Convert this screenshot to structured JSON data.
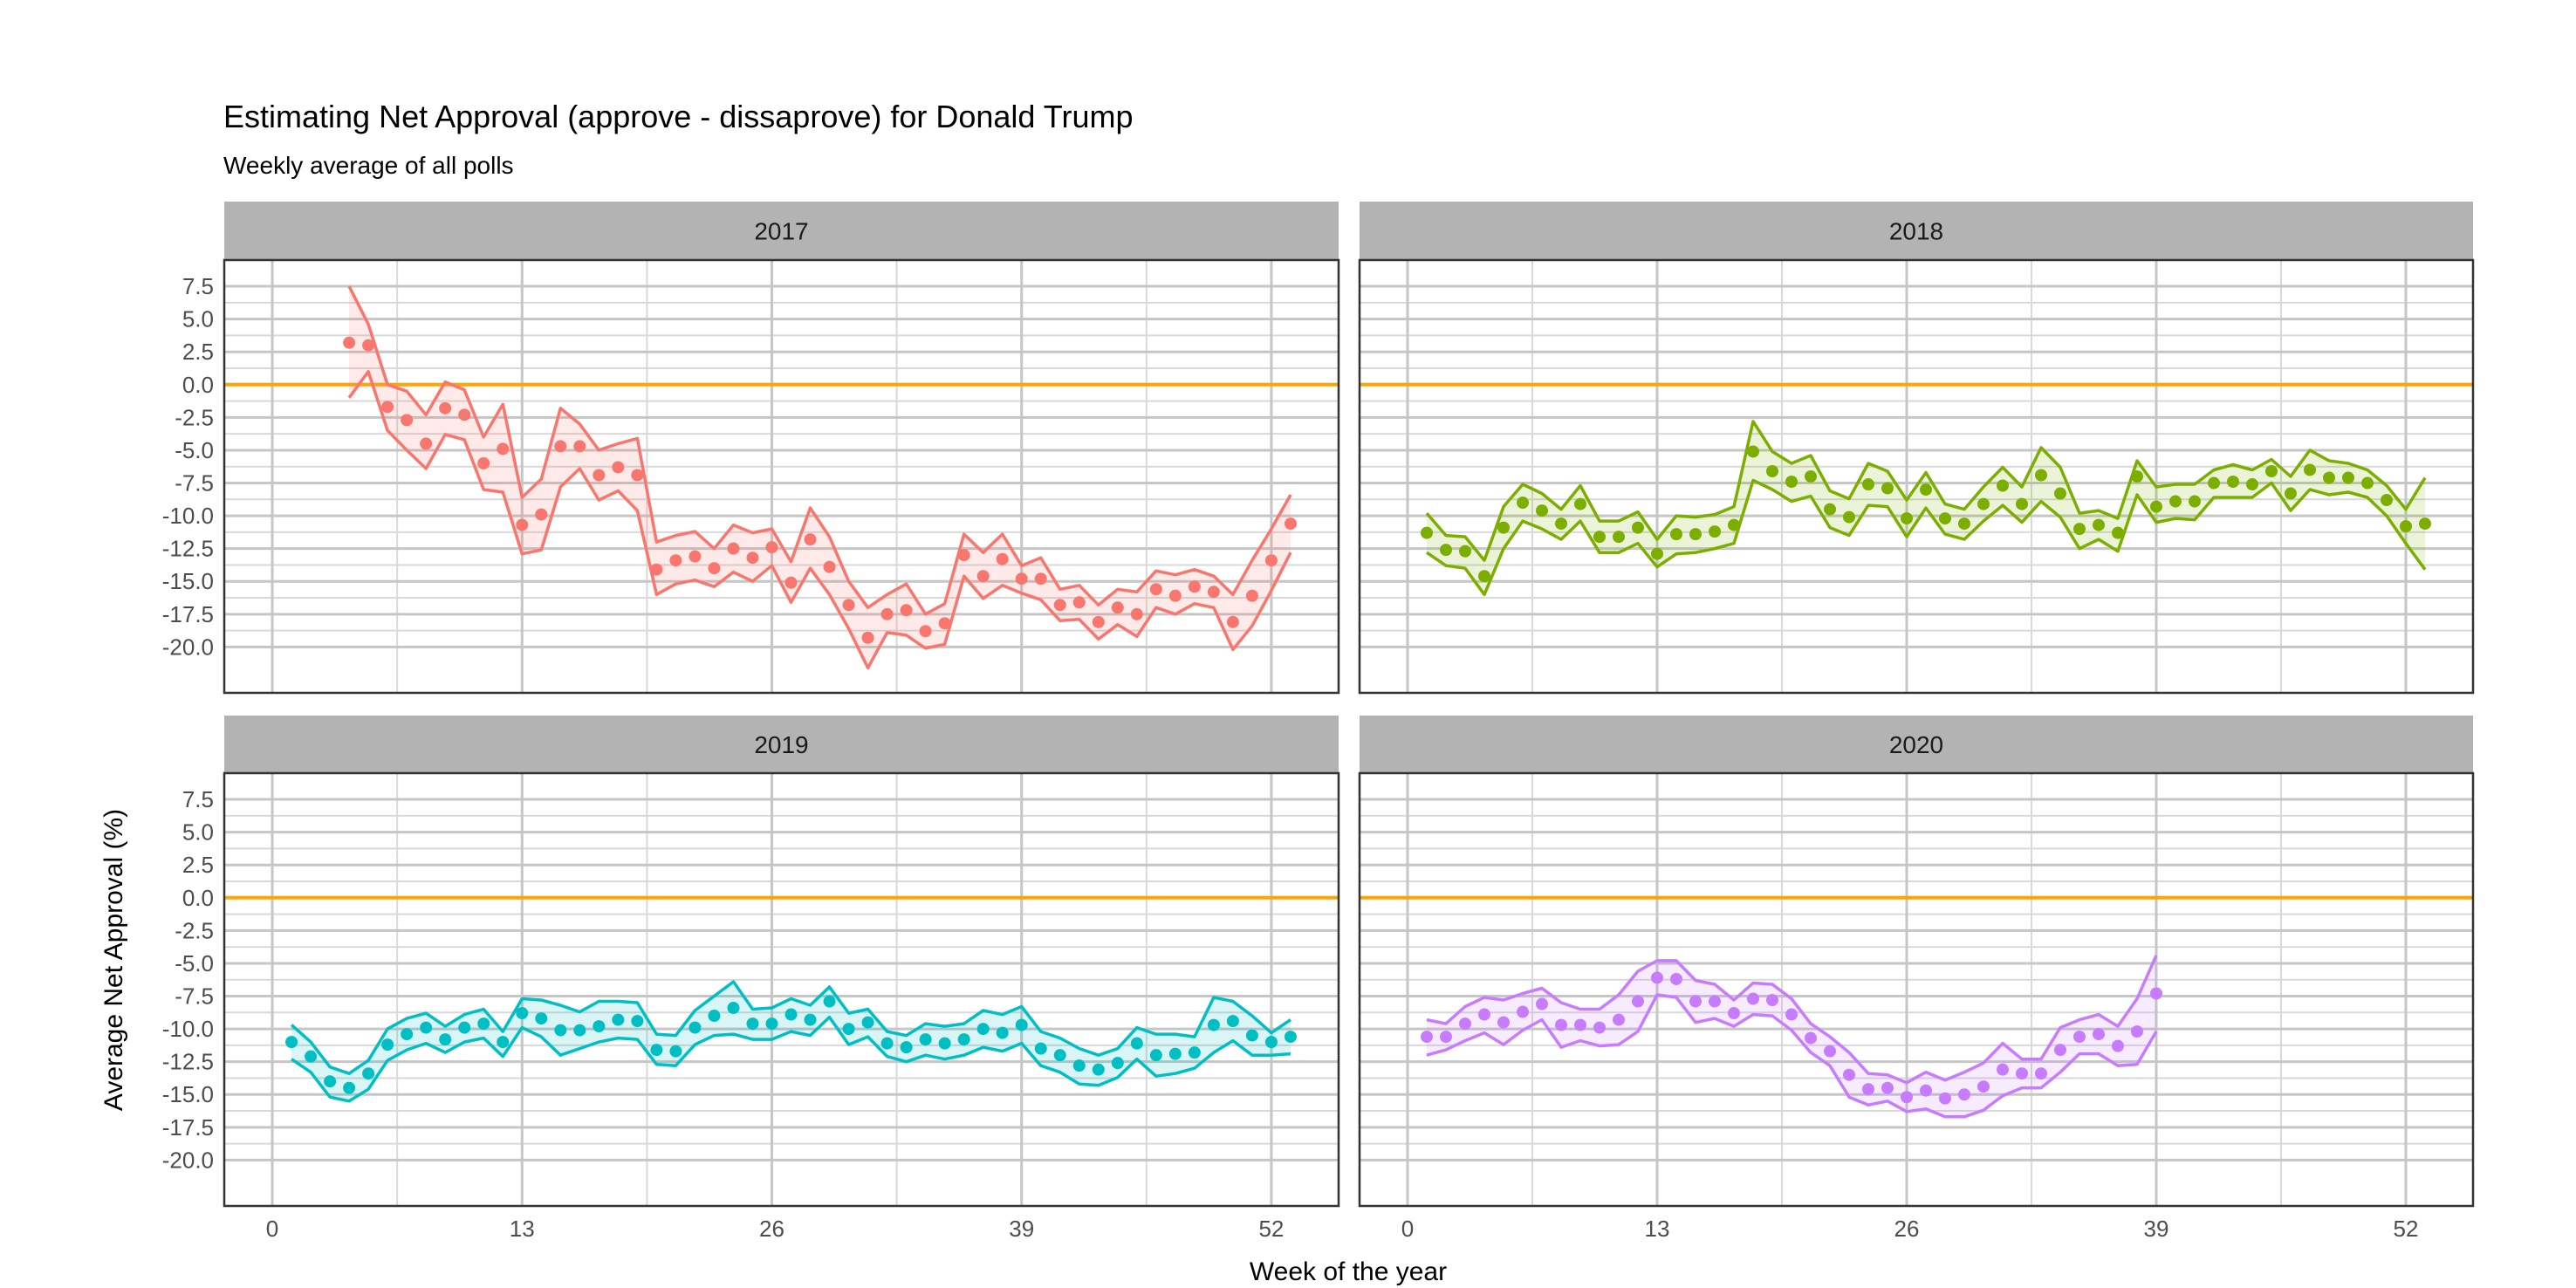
{
  "chart_data": {
    "type": "line",
    "title": "Estimating Net Approval (approve - dissaprove) for Donald Trump",
    "subtitle": "Weekly average of all polls",
    "xlabel": "Week of the year",
    "ylabel": "Average Net Approval (%)",
    "xlim": [
      -2.5,
      55.5
    ],
    "ylim": [
      -23.5,
      9.5
    ],
    "x_ticks": [
      0,
      13,
      26,
      39,
      52
    ],
    "y_ticks": [
      7.5,
      5.0,
      2.5,
      0.0,
      -2.5,
      -5.0,
      -7.5,
      -10.0,
      -12.5,
      -15.0,
      -17.5,
      -20.0
    ],
    "y_tick_labels": [
      "7.5",
      "5.0",
      "2.5",
      "0.0",
      "-2.5",
      "-5.0",
      "-7.5",
      "-10.0",
      "-12.5",
      "-15.0",
      "-17.5",
      "-20.0"
    ],
    "reference_line": {
      "y": 0,
      "color": "#FFA500"
    },
    "grid": true,
    "panels": [
      {
        "label": "2017",
        "color": "#F8766D",
        "x": [
          4,
          5,
          6,
          7,
          8,
          9,
          10,
          11,
          12,
          13,
          14,
          15,
          16,
          17,
          18,
          19,
          20,
          21,
          22,
          23,
          24,
          25,
          26,
          27,
          28,
          29,
          30,
          31,
          32,
          33,
          34,
          35,
          36,
          37,
          38,
          39,
          40,
          41,
          42,
          43,
          44,
          45,
          46,
          47,
          48,
          49,
          50,
          51,
          52,
          53
        ],
        "values": [
          3.2,
          3.0,
          -1.7,
          -2.7,
          -4.5,
          -1.8,
          -2.3,
          -6.0,
          -4.9,
          -10.7,
          -9.9,
          -4.7,
          -4.7,
          -6.9,
          -6.3,
          -6.9,
          -14.1,
          -13.4,
          -13.1,
          -14.0,
          -12.5,
          -13.2,
          -12.4,
          -15.1,
          -11.8,
          -13.9,
          -16.8,
          -19.3,
          -17.5,
          -17.2,
          -18.8,
          -18.2,
          -13.0,
          -14.6,
          -13.3,
          -14.8,
          -14.8,
          -16.8,
          -16.6,
          -18.1,
          -17.0,
          -17.5,
          -15.6,
          -16.1,
          -15.4,
          -15.8,
          -18.1,
          -16.1,
          -13.4,
          -10.6
        ],
        "upper": [
          7.5,
          4.6,
          0.0,
          -0.5,
          -2.3,
          0.2,
          -0.4,
          -4.0,
          -1.5,
          -8.6,
          -7.2,
          -1.8,
          -3.0,
          -5.0,
          -4.5,
          -4.1,
          -12.0,
          -11.5,
          -11.2,
          -12.5,
          -10.7,
          -11.3,
          -11.0,
          -13.5,
          -9.4,
          -11.6,
          -15.0,
          -17.0,
          -16.0,
          -15.2,
          -17.5,
          -16.7,
          -11.4,
          -12.8,
          -11.4,
          -13.8,
          -13.2,
          -15.6,
          -15.3,
          -16.8,
          -15.6,
          -15.8,
          -14.2,
          -14.5,
          -14.1,
          -14.6,
          -16.0,
          -13.4,
          -11.0,
          -8.4
        ],
        "lower": [
          -1.0,
          1.0,
          -3.5,
          -5.0,
          -6.4,
          -3.8,
          -4.2,
          -8.0,
          -8.2,
          -12.9,
          -12.6,
          -7.8,
          -6.4,
          -8.8,
          -8.1,
          -9.6,
          -16.0,
          -15.2,
          -14.9,
          -15.4,
          -14.3,
          -15.0,
          -13.8,
          -16.6,
          -14.0,
          -16.0,
          -18.6,
          -21.6,
          -18.9,
          -19.1,
          -20.1,
          -19.8,
          -14.6,
          -16.3,
          -15.3,
          -15.9,
          -16.4,
          -18.0,
          -17.9,
          -19.4,
          -18.3,
          -19.2,
          -17.0,
          -17.5,
          -16.7,
          -17.0,
          -20.2,
          -18.4,
          -15.7,
          -12.8
        ]
      },
      {
        "label": "2018",
        "color": "#7CAE00",
        "x": [
          1,
          2,
          3,
          4,
          5,
          6,
          7,
          8,
          9,
          10,
          11,
          12,
          13,
          14,
          15,
          16,
          17,
          18,
          19,
          20,
          21,
          22,
          23,
          24,
          25,
          26,
          27,
          28,
          29,
          30,
          31,
          32,
          33,
          34,
          35,
          36,
          37,
          38,
          39,
          40,
          41,
          42,
          43,
          44,
          45,
          46,
          47,
          48,
          49,
          50,
          51,
          52,
          53
        ],
        "values": [
          -11.3,
          -12.6,
          -12.7,
          -14.6,
          -10.9,
          -9.0,
          -9.6,
          -10.6,
          -9.1,
          -11.6,
          -11.6,
          -10.9,
          -12.9,
          -11.4,
          -11.4,
          -11.2,
          -10.7,
          -5.1,
          -6.6,
          -7.4,
          -7.0,
          -9.5,
          -10.1,
          -7.6,
          -7.9,
          -10.2,
          -8.0,
          -10.2,
          -10.6,
          -9.1,
          -7.7,
          -9.1,
          -6.9,
          -8.3,
          -11.0,
          -10.7,
          -11.3,
          -7.0,
          -9.3,
          -8.9,
          -8.9,
          -7.5,
          -7.4,
          -7.6,
          -6.6,
          -8.3,
          -6.5,
          -7.1,
          -7.1,
          -7.5,
          -8.8,
          -10.8,
          -10.6
        ],
        "upper": [
          -9.8,
          -11.5,
          -11.6,
          -13.4,
          -9.3,
          -7.6,
          -8.3,
          -9.5,
          -7.7,
          -10.4,
          -10.4,
          -9.7,
          -11.8,
          -10.0,
          -10.1,
          -9.9,
          -9.3,
          -2.8,
          -5.1,
          -6.0,
          -5.4,
          -8.1,
          -8.7,
          -6.0,
          -6.6,
          -8.8,
          -6.7,
          -9.1,
          -9.5,
          -7.8,
          -6.3,
          -7.8,
          -4.8,
          -6.3,
          -9.8,
          -9.6,
          -10.2,
          -5.8,
          -7.8,
          -7.6,
          -7.6,
          -6.5,
          -6.1,
          -6.5,
          -5.7,
          -7.0,
          -5.0,
          -5.8,
          -6.0,
          -6.5,
          -7.7,
          -9.5,
          -7.1
        ],
        "lower": [
          -12.8,
          -13.8,
          -14.0,
          -16.0,
          -12.5,
          -10.4,
          -11.0,
          -11.8,
          -10.4,
          -12.8,
          -12.8,
          -12.1,
          -13.9,
          -12.9,
          -12.8,
          -12.5,
          -12.1,
          -7.3,
          -8.0,
          -8.9,
          -8.5,
          -10.9,
          -11.5,
          -9.2,
          -9.3,
          -11.6,
          -9.4,
          -11.4,
          -11.8,
          -10.4,
          -9.2,
          -10.5,
          -8.9,
          -10.1,
          -12.5,
          -11.8,
          -12.7,
          -8.4,
          -10.5,
          -10.2,
          -10.3,
          -8.6,
          -8.6,
          -8.6,
          -7.5,
          -9.6,
          -8.0,
          -8.4,
          -8.2,
          -8.6,
          -10.0,
          -12.1,
          -14.1
        ]
      },
      {
        "label": "2019",
        "color": "#00BFC4",
        "x": [
          1,
          2,
          3,
          4,
          5,
          6,
          7,
          8,
          9,
          10,
          11,
          12,
          13,
          14,
          15,
          16,
          17,
          18,
          19,
          20,
          21,
          22,
          23,
          24,
          25,
          26,
          27,
          28,
          29,
          30,
          31,
          32,
          33,
          34,
          35,
          36,
          37,
          38,
          39,
          40,
          41,
          42,
          43,
          44,
          45,
          46,
          47,
          48,
          49,
          50,
          51,
          52,
          53
        ],
        "values": [
          -11.0,
          -12.1,
          -14.0,
          -14.5,
          -13.4,
          -11.2,
          -10.4,
          -9.9,
          -10.8,
          -9.9,
          -9.6,
          -11.0,
          -8.8,
          -9.2,
          -10.1,
          -10.1,
          -9.8,
          -9.3,
          -9.4,
          -11.6,
          -11.7,
          -9.9,
          -9.0,
          -8.4,
          -9.6,
          -9.6,
          -8.9,
          -9.3,
          -7.9,
          -10.0,
          -9.5,
          -11.1,
          -11.4,
          -10.8,
          -11.1,
          -10.8,
          -10.0,
          -10.3,
          -9.7,
          -11.5,
          -12.0,
          -12.8,
          -13.1,
          -12.6,
          -11.1,
          -12.0,
          -11.9,
          -11.8,
          -9.7,
          -9.4,
          -10.5,
          -11.0,
          -10.6
        ],
        "upper": [
          -9.7,
          -11.0,
          -12.9,
          -13.4,
          -12.4,
          -10.0,
          -9.2,
          -8.8,
          -9.8,
          -8.9,
          -8.5,
          -10.2,
          -7.7,
          -7.8,
          -8.2,
          -8.7,
          -7.9,
          -7.9,
          -8.0,
          -10.4,
          -10.5,
          -8.6,
          -7.5,
          -6.4,
          -8.5,
          -8.4,
          -7.7,
          -8.2,
          -6.8,
          -8.8,
          -8.5,
          -10.2,
          -10.5,
          -9.6,
          -9.8,
          -9.6,
          -8.6,
          -8.9,
          -8.3,
          -10.2,
          -10.7,
          -11.5,
          -12.0,
          -11.5,
          -9.9,
          -10.4,
          -10.4,
          -10.6,
          -7.6,
          -7.9,
          -9.0,
          -10.3,
          -9.3
        ],
        "lower": [
          -12.3,
          -13.3,
          -15.2,
          -15.5,
          -14.6,
          -12.4,
          -11.6,
          -11.1,
          -11.8,
          -11.0,
          -10.7,
          -12.1,
          -9.9,
          -10.6,
          -12.0,
          -11.5,
          -11.0,
          -10.7,
          -10.8,
          -12.7,
          -12.8,
          -11.2,
          -10.5,
          -10.4,
          -10.8,
          -10.8,
          -10.2,
          -10.5,
          -9.1,
          -11.2,
          -10.6,
          -12.1,
          -12.5,
          -12.0,
          -12.3,
          -12.0,
          -11.4,
          -11.7,
          -11.1,
          -12.8,
          -13.3,
          -14.2,
          -14.3,
          -13.7,
          -12.3,
          -13.6,
          -13.4,
          -13.0,
          -11.8,
          -10.9,
          -12.0,
          -12.0,
          -11.9
        ]
      },
      {
        "label": "2020",
        "color": "#C77CFF",
        "x": [
          1,
          2,
          3,
          4,
          5,
          6,
          7,
          8,
          9,
          10,
          11,
          12,
          13,
          14,
          15,
          16,
          17,
          18,
          19,
          20,
          21,
          22,
          23,
          24,
          25,
          26,
          27,
          28,
          29,
          30,
          31,
          32,
          33,
          34,
          35,
          36,
          37,
          38,
          39
        ],
        "values": [
          -10.6,
          -10.6,
          -9.6,
          -8.9,
          -9.5,
          -8.7,
          -8.1,
          -9.7,
          -9.7,
          -9.9,
          -9.3,
          -7.9,
          -6.1,
          -6.2,
          -7.9,
          -7.9,
          -8.8,
          -7.7,
          -7.8,
          -8.9,
          -10.7,
          -11.7,
          -13.5,
          -14.6,
          -14.5,
          -15.2,
          -14.7,
          -15.3,
          -15.0,
          -14.4,
          -13.1,
          -13.4,
          -13.4,
          -11.6,
          -10.6,
          -10.4,
          -11.3,
          -10.2,
          -7.3
        ],
        "upper": [
          -9.3,
          -9.6,
          -8.3,
          -7.6,
          -7.8,
          -7.3,
          -6.9,
          -8.0,
          -8.5,
          -8.5,
          -7.4,
          -5.6,
          -4.8,
          -4.8,
          -6.3,
          -6.6,
          -7.8,
          -6.5,
          -6.6,
          -7.7,
          -9.6,
          -10.6,
          -11.8,
          -13.4,
          -13.5,
          -14.1,
          -13.3,
          -13.9,
          -13.3,
          -12.6,
          -11.1,
          -12.3,
          -12.3,
          -9.9,
          -9.3,
          -8.9,
          -9.8,
          -7.7,
          -4.4
        ],
        "lower": [
          -12.0,
          -11.6,
          -10.9,
          -10.3,
          -11.2,
          -10.1,
          -9.3,
          -11.4,
          -10.9,
          -11.3,
          -11.2,
          -10.2,
          -7.4,
          -7.6,
          -9.5,
          -9.2,
          -9.8,
          -8.9,
          -9.0,
          -10.1,
          -11.8,
          -12.8,
          -15.2,
          -15.8,
          -15.5,
          -16.3,
          -16.1,
          -16.7,
          -16.7,
          -16.2,
          -15.1,
          -14.5,
          -14.5,
          -13.3,
          -11.9,
          -11.9,
          -12.8,
          -12.7,
          -10.2
        ]
      }
    ]
  }
}
